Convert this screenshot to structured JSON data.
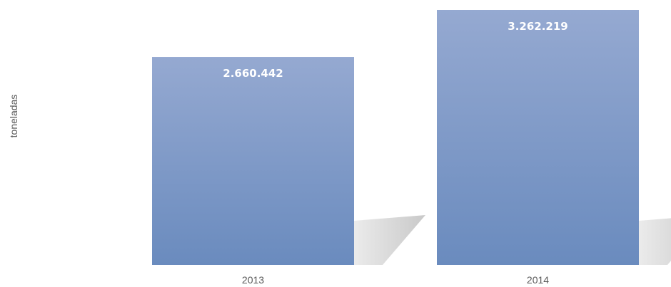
{
  "chart_data": {
    "type": "bar",
    "title": "",
    "xlabel": "",
    "ylabel": "toneladas",
    "categories": [
      "2013",
      "2014"
    ],
    "values": [
      2660442,
      3262219
    ],
    "data_labels": [
      "2.660.442",
      "3.262.219"
    ],
    "ylim": [
      0,
      3262219
    ],
    "grid": false,
    "legend": "none",
    "colors": {
      "bar_top": "#95A9D1",
      "bar_bottom": "#6A8BBE",
      "shadow": "#C6C6C6",
      "text": "#595959",
      "data_label": "#FFFFFF"
    }
  }
}
